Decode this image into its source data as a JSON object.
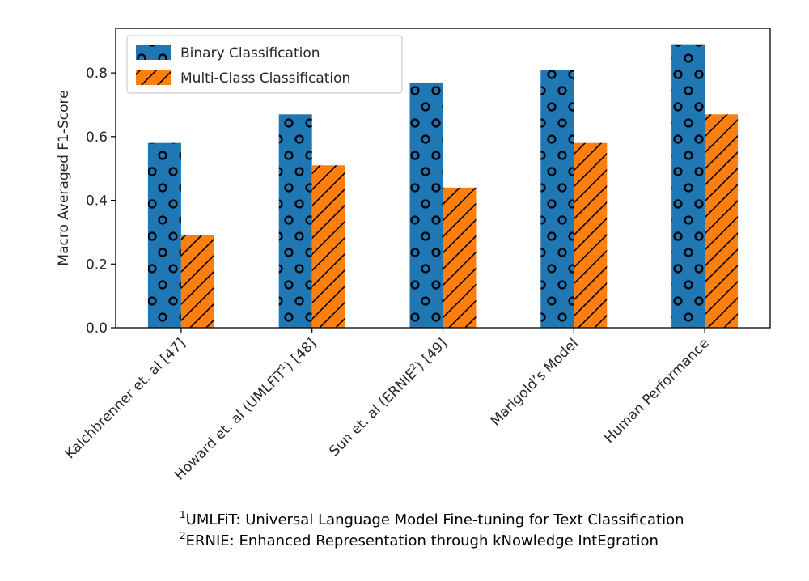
{
  "chart_data": {
    "type": "bar",
    "categories": [
      [
        "Kalchbrenner et. al [47]"
      ],
      [
        "Howard et. al (UMLFiT",
        "1",
        ") [48]"
      ],
      [
        "Sun et. al (ERNIE",
        "2",
        ") [49]"
      ],
      [
        "Marigold’s Model"
      ],
      [
        "Human Performance"
      ]
    ],
    "series": [
      {
        "name": "Binary Classification",
        "values": [
          0.58,
          0.67,
          0.77,
          0.81,
          0.89
        ],
        "color": "#1f77b4",
        "pattern": "circles"
      },
      {
        "name": "Multi-Class Classification",
        "values": [
          0.29,
          0.51,
          0.44,
          0.58,
          0.67
        ],
        "color": "#ff7f0e",
        "pattern": "diagonal-hatch"
      }
    ],
    "title": "",
    "xlabel": "",
    "ylabel": "Macro Averaged F1-Score",
    "ylim": [
      0,
      0.94
    ],
    "yticks": [
      "0.0",
      "0.2",
      "0.4",
      "0.6",
      "0.8"
    ],
    "grid": false,
    "legend_position": "top-left"
  },
  "footnotes": [
    {
      "marker": "1",
      "text": "UMLFiT: Universal Language Model Fine-tuning for Text Classification"
    },
    {
      "marker": "2",
      "text": "ERNIE: Enhanced Representation through kNowledge IntEgration"
    }
  ]
}
